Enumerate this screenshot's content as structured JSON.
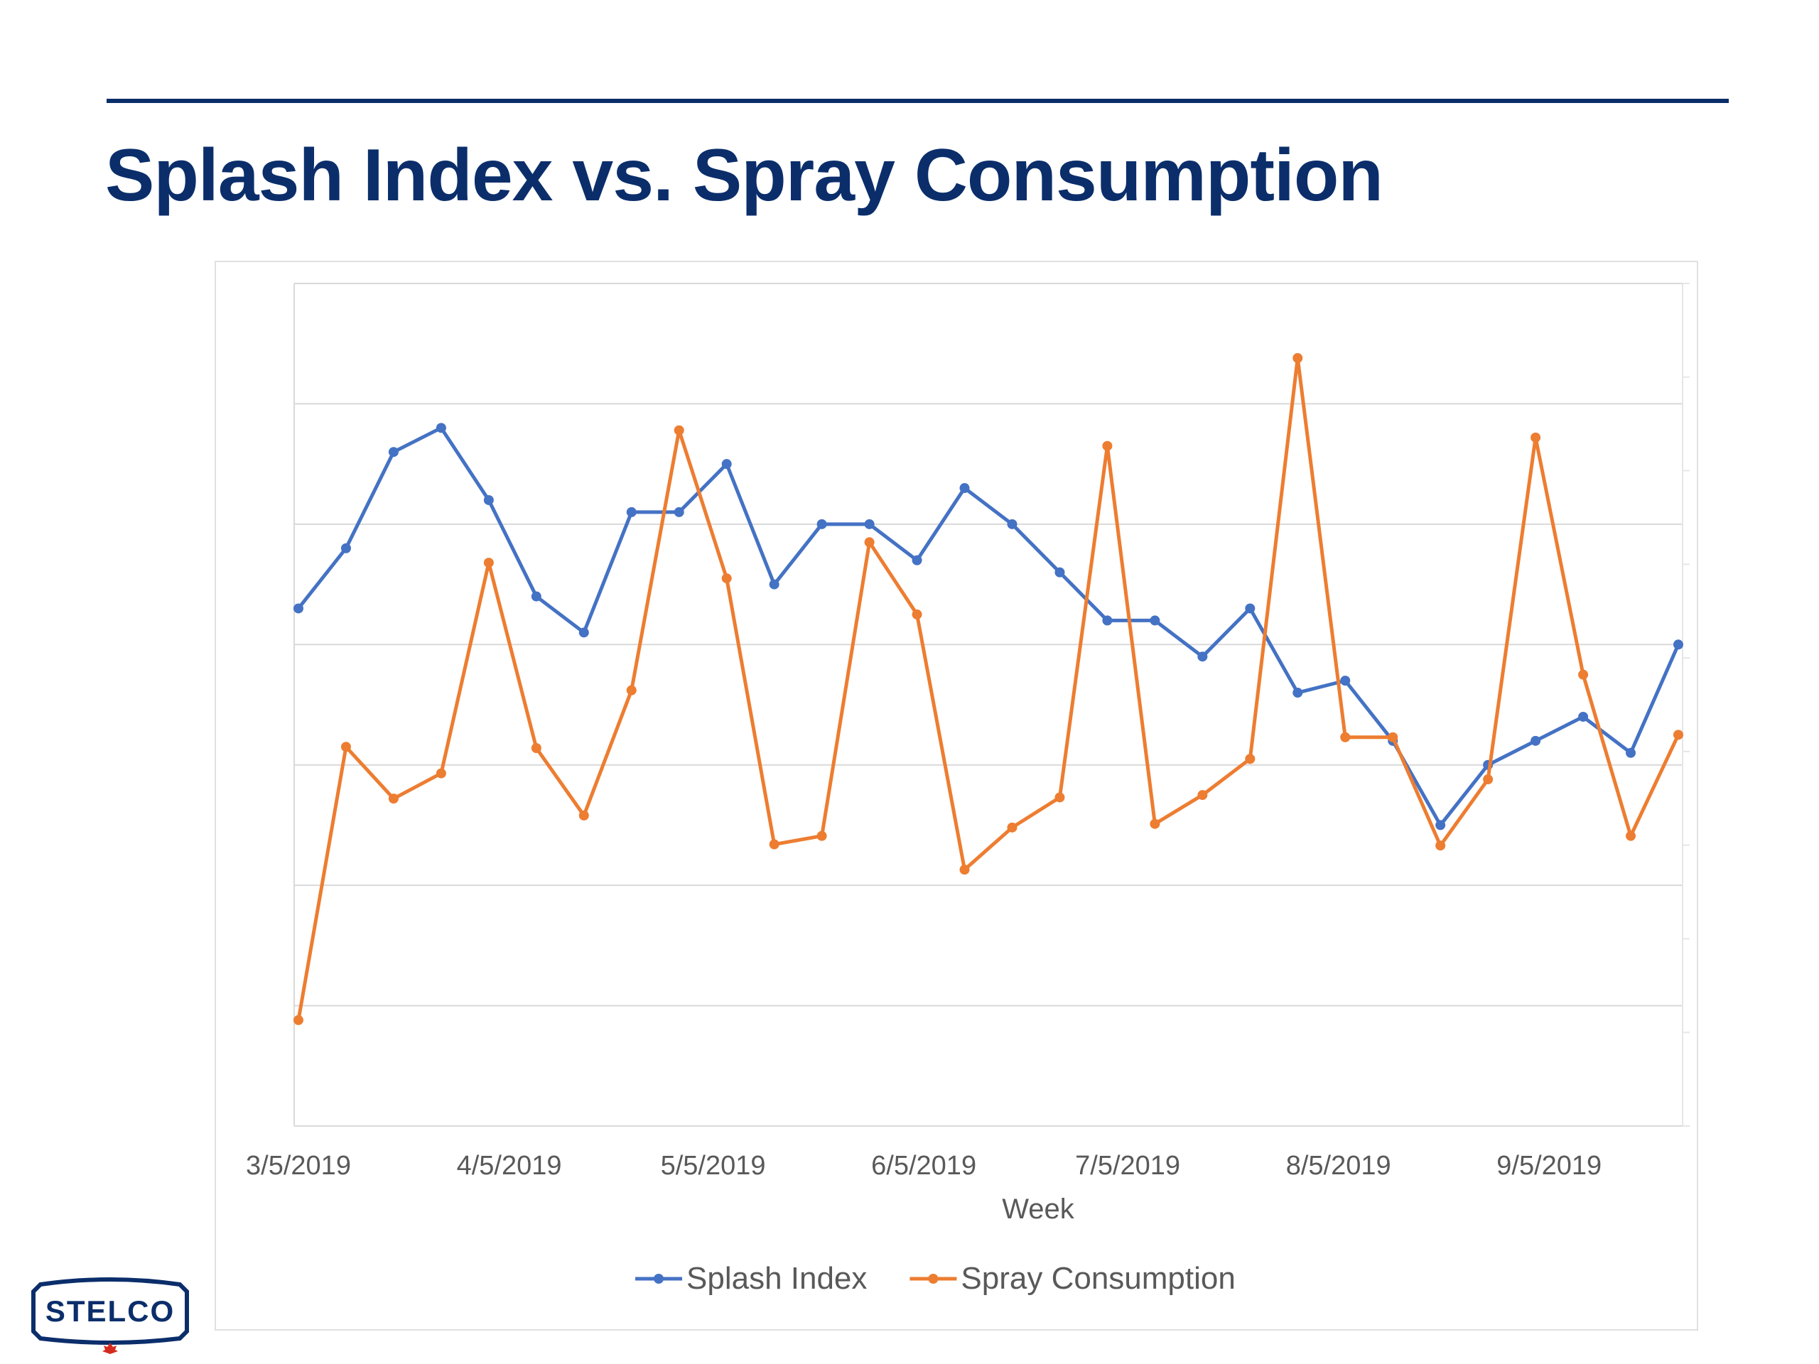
{
  "slide": {
    "title": "Splash Index vs. Spray Consumption"
  },
  "logo": {
    "text": "STELCO"
  },
  "colors": {
    "title": "#0b2e6b",
    "splash": "#4472c4",
    "spray": "#ed7d31",
    "grid": "#d9d9d9",
    "axis_text": "#595959"
  },
  "chart_data": {
    "type": "line",
    "title": "",
    "xlabel": "Week",
    "ylabel": "",
    "grid": true,
    "legend": "bottom",
    "x_tick_labels": [
      "3/5/2019",
      "4/5/2019",
      "5/5/2019",
      "6/5/2019",
      "7/5/2019",
      "8/5/2019",
      "9/5/2019"
    ],
    "x": [
      "3/5/2019",
      "3/12/2019",
      "3/19/2019",
      "3/26/2019",
      "4/2/2019",
      "4/9/2019",
      "4/16/2019",
      "4/23/2019",
      "4/30/2019",
      "5/7/2019",
      "5/14/2019",
      "5/21/2019",
      "5/28/2019",
      "6/4/2019",
      "6/11/2019",
      "6/18/2019",
      "6/25/2019",
      "7/2/2019",
      "7/9/2019",
      "7/16/2019",
      "7/23/2019",
      "7/30/2019",
      "8/6/2019",
      "8/13/2019",
      "8/20/2019",
      "8/27/2019",
      "9/3/2019",
      "9/10/2019",
      "9/17/2019",
      "9/24/2019"
    ],
    "ylim": [
      0,
      7
    ],
    "series": [
      {
        "name": "Splash Index",
        "color": "#4472c4",
        "values": [
          4.3,
          4.8,
          5.6,
          5.8,
          5.2,
          4.4,
          4.1,
          5.1,
          5.1,
          5.5,
          4.5,
          5.0,
          5.0,
          4.7,
          5.3,
          5.0,
          4.6,
          4.2,
          4.2,
          3.9,
          4.3,
          3.6,
          3.7,
          3.2,
          2.5,
          3.0,
          3.2,
          3.4,
          3.1,
          4.0
        ]
      },
      {
        "name": "Spray Consumption",
        "color": "#ed7d31",
        "values": [
          0.88,
          3.15,
          2.72,
          2.93,
          4.68,
          3.14,
          2.58,
          3.62,
          5.78,
          4.55,
          2.34,
          2.41,
          4.85,
          4.25,
          2.13,
          2.48,
          2.73,
          5.65,
          2.51,
          2.75,
          3.05,
          6.38,
          3.23,
          3.23,
          2.33,
          2.88,
          5.72,
          3.75,
          2.41,
          3.25
        ]
      }
    ]
  }
}
